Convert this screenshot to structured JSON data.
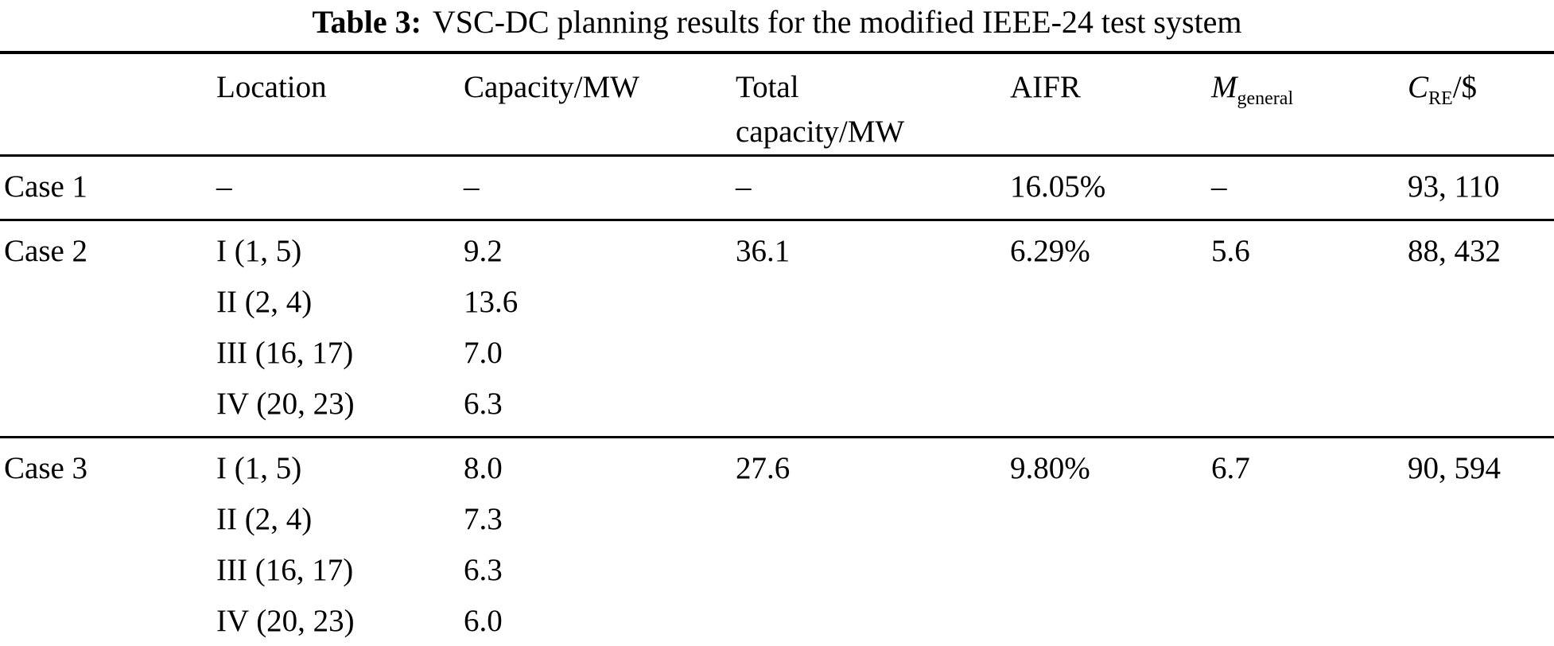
{
  "page": {
    "background": "#ffffff",
    "text_color": "#000000"
  },
  "title": {
    "label": "Table 3:",
    "text": "VSC-DC planning results for the modified IEEE-24 test system"
  },
  "table": {
    "header": {
      "case": "",
      "location": "Location",
      "capacity": "Capacity/MW",
      "total": "Total capacity/MW",
      "aifr": "AIFR",
      "m": {
        "main": "M",
        "sub": "general"
      },
      "c": {
        "main": "C",
        "sub": "RE",
        "suffix": "/$"
      }
    },
    "rows": [
      {
        "case": "Case 1",
        "location": [
          "–"
        ],
        "capacity": [
          "–"
        ],
        "total": "–",
        "aifr": "16.05%",
        "m": "–",
        "c": "93, 110"
      },
      {
        "case": "Case 2",
        "location": [
          "I (1, 5)",
          "II (2, 4)",
          "III (16, 17)",
          "IV (20, 23)"
        ],
        "capacity": [
          "9.2",
          "13.6",
          "7.0",
          "6.3"
        ],
        "total": "36.1",
        "aifr": "6.29%",
        "m": "5.6",
        "c": "88, 432"
      },
      {
        "case": "Case 3",
        "location": [
          "I (1, 5)",
          "II (2, 4)",
          "III (16, 17)",
          "IV (20, 23)"
        ],
        "capacity": [
          "8.0",
          "7.3",
          "6.3",
          "6.0"
        ],
        "total": "27.6",
        "aifr": "9.80%",
        "m": "6.7",
        "c": "90, 594"
      }
    ]
  }
}
